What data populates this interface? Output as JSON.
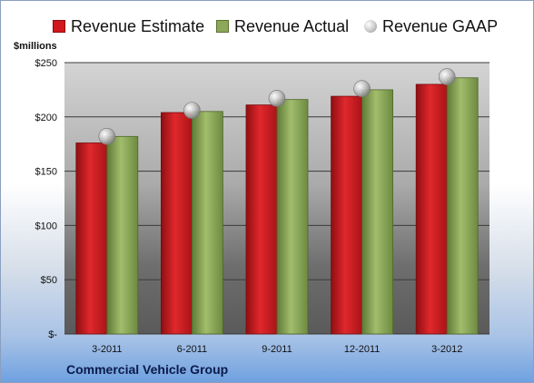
{
  "chart_data": {
    "type": "bar",
    "title": "",
    "ylabel": "$millions",
    "xlabel": "",
    "footer": "Commercial Vehicle Group",
    "categories": [
      "3-2011",
      "6-2011",
      "9-2011",
      "12-2011",
      "3-2012"
    ],
    "series": [
      {
        "name": "Revenue Estimate",
        "type": "bar",
        "color": "#d2171d",
        "values": [
          176,
          204,
          211,
          219,
          230
        ]
      },
      {
        "name": "Revenue Actual",
        "type": "bar",
        "color": "#8ca858",
        "values": [
          182,
          205,
          216,
          225,
          236
        ]
      },
      {
        "name": "Revenue GAAP",
        "type": "marker",
        "color": "#b9b9b9",
        "values": [
          182,
          206,
          217,
          226,
          237
        ]
      }
    ],
    "ylim": [
      0,
      250
    ],
    "yticks": [
      0,
      50,
      100,
      150,
      200,
      250
    ],
    "ytick_labels": [
      "$-",
      "$50",
      "$100",
      "$150",
      "$200",
      "$250"
    ],
    "grid": true,
    "legend": "top"
  }
}
